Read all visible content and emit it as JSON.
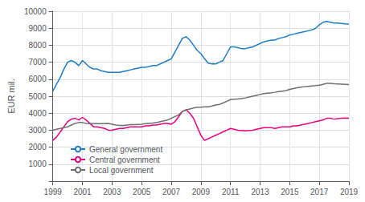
{
  "chart_data": {
    "type": "line",
    "ylabel": "EUR mil.",
    "xlim": [
      1999,
      2019
    ],
    "ylim": [
      0,
      10000
    ],
    "xticks": [
      1999,
      2001,
      2003,
      2005,
      2007,
      2009,
      2011,
      2013,
      2015,
      2017,
      2019
    ],
    "yticks": [
      1000,
      2000,
      3000,
      4000,
      5000,
      6000,
      7000,
      8000,
      9000,
      10000
    ],
    "grid": true,
    "legend": "lower left",
    "x": [
      1999,
      1999.25,
      1999.5,
      1999.75,
      2000,
      2000.25,
      2000.5,
      2000.75,
      2001,
      2001.25,
      2001.5,
      2001.75,
      2002,
      2002.25,
      2002.5,
      2002.75,
      2003,
      2003.25,
      2003.5,
      2003.75,
      2004,
      2004.25,
      2004.5,
      2004.75,
      2005,
      2005.25,
      2005.5,
      2005.75,
      2006,
      2006.25,
      2006.5,
      2006.75,
      2007,
      2007.25,
      2007.5,
      2007.75,
      2008,
      2008.25,
      2008.5,
      2008.75,
      2009,
      2009.25,
      2009.5,
      2009.75,
      2010,
      2010.25,
      2010.5,
      2010.75,
      2011,
      2011.25,
      2011.5,
      2011.75,
      2012,
      2012.25,
      2012.5,
      2012.75,
      2013,
      2013.25,
      2013.5,
      2013.75,
      2014,
      2014.25,
      2014.5,
      2014.75,
      2015,
      2015.25,
      2015.5,
      2015.75,
      2016,
      2016.25,
      2016.5,
      2016.75,
      2017,
      2017.25,
      2017.5,
      2017.75,
      2018,
      2018.25,
      2018.5,
      2018.75,
      2019
    ],
    "series": [
      {
        "name": "General government",
        "color": "#1f7bc4",
        "values": [
          5300,
          5700,
          6100,
          6600,
          7000,
          7100,
          7000,
          6800,
          7100,
          6900,
          6700,
          6600,
          6600,
          6500,
          6450,
          6400,
          6400,
          6400,
          6400,
          6450,
          6500,
          6550,
          6600,
          6650,
          6700,
          6700,
          6750,
          6800,
          6800,
          6900,
          7000,
          7100,
          7200,
          7600,
          8000,
          8400,
          8500,
          8300,
          8000,
          7700,
          7500,
          7200,
          6950,
          6900,
          6900,
          7000,
          7100,
          7500,
          7900,
          7900,
          7850,
          7800,
          7800,
          7850,
          7900,
          8000,
          8100,
          8200,
          8250,
          8300,
          8300,
          8400,
          8450,
          8500,
          8600,
          8650,
          8700,
          8750,
          8800,
          8850,
          8900,
          9000,
          9200,
          9350,
          9400,
          9350,
          9300,
          9300,
          9280,
          9260,
          9250
        ]
      },
      {
        "name": "Central government",
        "color": "#e6007e",
        "values": [
          2400,
          2600,
          2900,
          3200,
          3500,
          3650,
          3700,
          3600,
          3750,
          3600,
          3400,
          3200,
          3200,
          3150,
          3100,
          3000,
          3000,
          3050,
          3100,
          3100,
          3150,
          3200,
          3200,
          3200,
          3200,
          3250,
          3250,
          3300,
          3300,
          3350,
          3400,
          3400,
          3350,
          3500,
          3800,
          4100,
          4200,
          4000,
          3700,
          3200,
          2700,
          2400,
          2500,
          2600,
          2700,
          2800,
          2900,
          3000,
          3100,
          3050,
          3000,
          2980,
          2960,
          2980,
          3000,
          3050,
          3100,
          3150,
          3150,
          3150,
          3100,
          3150,
          3200,
          3200,
          3200,
          3250,
          3250,
          3300,
          3350,
          3400,
          3450,
          3500,
          3550,
          3600,
          3700,
          3700,
          3650,
          3680,
          3700,
          3720,
          3700
        ]
      },
      {
        "name": "Local government",
        "color": "#6e6e6e",
        "values": [
          3000,
          3050,
          3100,
          3150,
          3200,
          3300,
          3400,
          3450,
          3450,
          3400,
          3380,
          3380,
          3380,
          3380,
          3380,
          3400,
          3350,
          3300,
          3280,
          3280,
          3300,
          3320,
          3330,
          3340,
          3350,
          3380,
          3400,
          3420,
          3450,
          3500,
          3550,
          3600,
          3700,
          3800,
          3900,
          4100,
          4200,
          4250,
          4300,
          4350,
          4350,
          4370,
          4380,
          4420,
          4480,
          4520,
          4600,
          4700,
          4800,
          4820,
          4840,
          4860,
          4900,
          4950,
          5000,
          5050,
          5100,
          5150,
          5180,
          5200,
          5230,
          5270,
          5300,
          5330,
          5400,
          5450,
          5500,
          5530,
          5560,
          5580,
          5600,
          5620,
          5650,
          5700,
          5750,
          5750,
          5730,
          5720,
          5710,
          5700,
          5680
        ]
      }
    ]
  }
}
